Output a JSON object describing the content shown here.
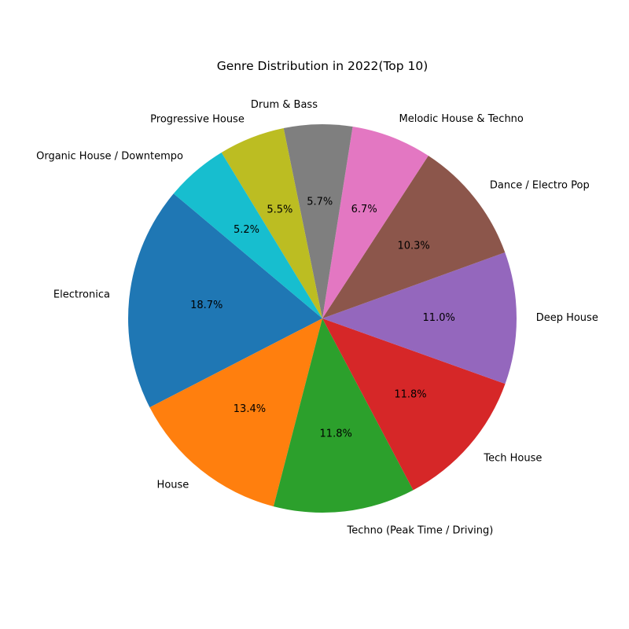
{
  "chart_data": {
    "type": "pie",
    "title": "Genre Distribution in 2022(Top 10)",
    "categories": [
      "Electronica",
      "House",
      "Techno (Peak Time / Driving)",
      "Tech House",
      "Deep House",
      "Dance / Electro Pop",
      "Melodic House & Techno",
      "Drum & Bass",
      "Progressive House",
      "Organic House / Downtempo"
    ],
    "values": [
      18.7,
      13.4,
      11.8,
      11.8,
      11.0,
      10.3,
      6.7,
      5.7,
      5.5,
      5.2
    ],
    "value_labels": [
      "18.7%",
      "13.4%",
      "11.8%",
      "11.8%",
      "11.0%",
      "10.3%",
      "6.7%",
      "5.7%",
      "5.5%",
      "5.2%"
    ],
    "colors": [
      "#1f77b4",
      "#ff7f0e",
      "#2ca02c",
      "#d62728",
      "#9467bd",
      "#8c564b",
      "#e377c2",
      "#7f7f7f",
      "#bcbd22",
      "#17becf"
    ],
    "start_angle_deg": 140,
    "direction": "counterclockwise",
    "legend": "none"
  }
}
